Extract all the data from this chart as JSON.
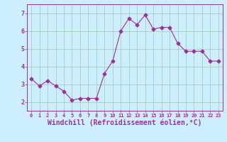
{
  "x": [
    0,
    1,
    2,
    3,
    4,
    5,
    6,
    7,
    8,
    9,
    10,
    11,
    12,
    13,
    14,
    15,
    16,
    17,
    18,
    19,
    20,
    21,
    22,
    23
  ],
  "y": [
    3.3,
    2.9,
    3.2,
    2.9,
    2.6,
    2.1,
    2.2,
    2.2,
    2.2,
    3.6,
    4.3,
    6.0,
    6.7,
    6.35,
    6.9,
    6.1,
    6.2,
    6.2,
    5.3,
    4.85,
    4.85,
    4.85,
    4.3,
    4.3
  ],
  "line_color": "#993399",
  "marker": "D",
  "marker_size": 2.5,
  "xlabel": "Windchill (Refroidissement éolien,°C)",
  "xlabel_fontsize": 7,
  "bg_color": "#cceeff",
  "grid_color": "#aaccbb",
  "tick_color": "#993399",
  "label_color": "#993399",
  "ylim": [
    1.5,
    7.5
  ],
  "xlim": [
    -0.5,
    23.5
  ],
  "yticks": [
    2,
    3,
    4,
    5,
    6,
    7
  ],
  "xticks": [
    0,
    1,
    2,
    3,
    4,
    5,
    6,
    7,
    8,
    9,
    10,
    11,
    12,
    13,
    14,
    15,
    16,
    17,
    18,
    19,
    20,
    21,
    22,
    23
  ]
}
